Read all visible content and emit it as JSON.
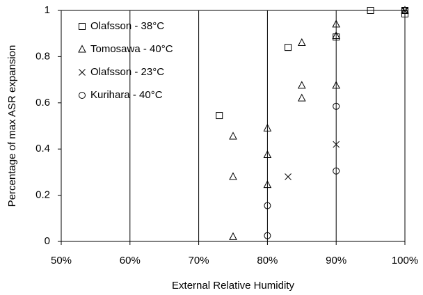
{
  "chart_data": {
    "type": "scatter",
    "x_label": "External Relative Humidity",
    "y_label": "Percentage of max ASR expansion",
    "xlim": [
      50,
      100
    ],
    "xticks": [
      {
        "value": 50,
        "label": "50%"
      },
      {
        "value": 60,
        "label": "60%"
      },
      {
        "value": 70,
        "label": "70%"
      },
      {
        "value": 80,
        "label": "80%"
      },
      {
        "value": 90,
        "label": "90%"
      },
      {
        "value": 100,
        "label": "100%"
      }
    ],
    "ylim": [
      0,
      1
    ],
    "yticks": [
      0,
      0.2,
      0.4,
      0.6,
      0.8,
      1
    ],
    "grid": "x",
    "legend": "top-left",
    "series": [
      {
        "name": "Olafsson - 38°C",
        "color": "#000000",
        "marker": "square",
        "x": [
          73,
          83,
          90,
          95,
          100,
          100
        ],
        "values": [
          0.545,
          0.84,
          0.885,
          1.0,
          0.985,
          1.0
        ]
      },
      {
        "name": "Tomosawa - 40°C",
        "color": "#000000",
        "marker": "triangle",
        "x": [
          75,
          75,
          75,
          80,
          80,
          80,
          85,
          85,
          85,
          90,
          90,
          90,
          100
        ],
        "values": [
          0.455,
          0.28,
          0.02,
          0.49,
          0.375,
          0.245,
          0.86,
          0.675,
          0.62,
          0.94,
          0.89,
          0.675,
          1.0
        ]
      },
      {
        "name": "Olafsson - 23°C",
        "color": "#000000",
        "marker": "cross",
        "x": [
          83,
          90,
          100
        ],
        "values": [
          0.28,
          0.42,
          1.0
        ]
      },
      {
        "name": "Kurihara - 40°C",
        "color": "#000000",
        "marker": "circle",
        "x": [
          80,
          80,
          90,
          90,
          100
        ],
        "values": [
          0.155,
          0.025,
          0.585,
          0.305,
          1.0
        ]
      }
    ]
  }
}
